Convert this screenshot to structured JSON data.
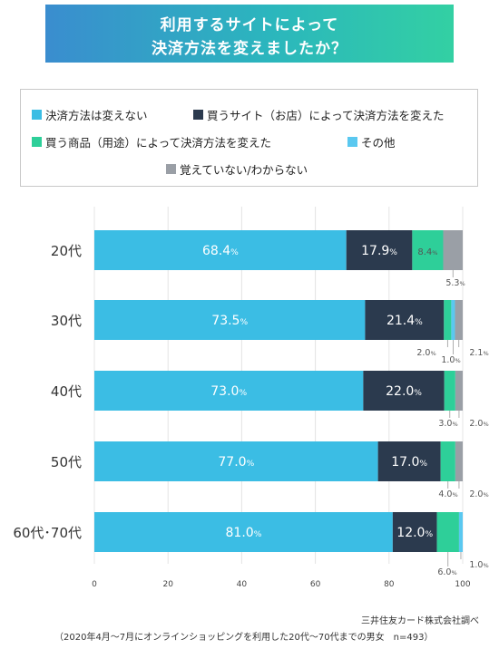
{
  "title": {
    "line1": "利用するサイトによって",
    "line2": "決済方法を変えましたか？"
  },
  "colors": {
    "c0": "#3bbde4",
    "c1": "#2b3a4e",
    "c2": "#2ecf99",
    "c3": "#5ac8f0",
    "c4": "#9a9fa6"
  },
  "chart_data": {
    "type": "bar",
    "orientation": "horizontal",
    "stacked": true,
    "categories": [
      "20代",
      "30代",
      "40代",
      "50代",
      "60代･70代"
    ],
    "series": [
      {
        "name": "決済方法は変えない",
        "values": [
          68.4,
          73.5,
          73.0,
          77.0,
          81.0
        ]
      },
      {
        "name": "買うサイト（お店）によって決済方法を変えた",
        "values": [
          17.9,
          21.4,
          22.0,
          17.0,
          12.0
        ]
      },
      {
        "name": "買う商品（用途）によって決済方法を変えた",
        "values": [
          8.4,
          2.0,
          3.0,
          4.0,
          6.0
        ]
      },
      {
        "name": "その他",
        "values": [
          0,
          1.0,
          0,
          0,
          1.0
        ]
      },
      {
        "name": "覚えていない/わからない",
        "values": [
          5.3,
          2.1,
          2.0,
          2.0,
          0
        ]
      }
    ],
    "xlim": [
      0,
      100
    ],
    "xticks": [
      "0",
      "20",
      "40",
      "60",
      "80",
      "100"
    ],
    "legend_position": "top",
    "grid": true,
    "labels": [
      {
        "row": 0,
        "inside": [
          "68.4",
          "17.9",
          "8.4"
        ],
        "outside": [
          "5.3"
        ]
      },
      {
        "row": 1,
        "inside": [
          "73.5",
          "21.4"
        ],
        "outside": [
          "2.0",
          "1.0",
          "2.1"
        ]
      },
      {
        "row": 2,
        "inside": [
          "73.0",
          "22.0"
        ],
        "outside": [
          "3.0",
          "2.0"
        ]
      },
      {
        "row": 3,
        "inside": [
          "77.0",
          "17.0"
        ],
        "outside": [
          "4.0",
          "2.0"
        ]
      },
      {
        "row": 4,
        "inside": [
          "81.0",
          "12.0"
        ],
        "outside": [
          "6.0",
          "1.0"
        ]
      }
    ],
    "unit": "%"
  },
  "source": "三井住友カード株式会社調べ",
  "footnote": "（2020年4月～7月にオンラインショッピングを利用した20代～70代までの男女　n=493）"
}
